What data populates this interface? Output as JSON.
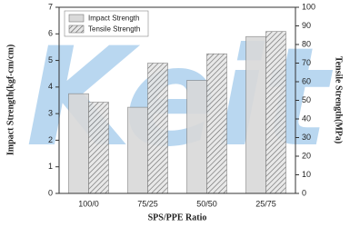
{
  "chart_data": {
    "type": "bar",
    "categories": [
      "100/0",
      "75/25",
      "50/50",
      "25/75"
    ],
    "series": [
      {
        "name": "Impact Strength",
        "color": "#d9d9d9",
        "values": [
          3.75,
          3.24,
          4.25,
          5.9
        ]
      },
      {
        "name": "Tensile Strength",
        "color": "#8c8c8c",
        "hatch": true,
        "axis": "y2",
        "values": [
          49,
          70,
          75,
          87
        ]
      }
    ],
    "xlabel": "SPS/PPE Ratio",
    "ylabel": "Impact Strength(kgf-cm/cm)",
    "y2label": "Tensile Strength(MPa)",
    "ylim": [
      0,
      7
    ],
    "yticks": [
      0,
      1,
      2,
      3,
      4,
      5,
      6,
      7
    ],
    "y2lim": [
      0,
      100
    ],
    "y2ticks": [
      0,
      10,
      20,
      30,
      40,
      50,
      60,
      70,
      80,
      90,
      100
    ],
    "legend": "upper-left",
    "watermark": "Keit"
  }
}
